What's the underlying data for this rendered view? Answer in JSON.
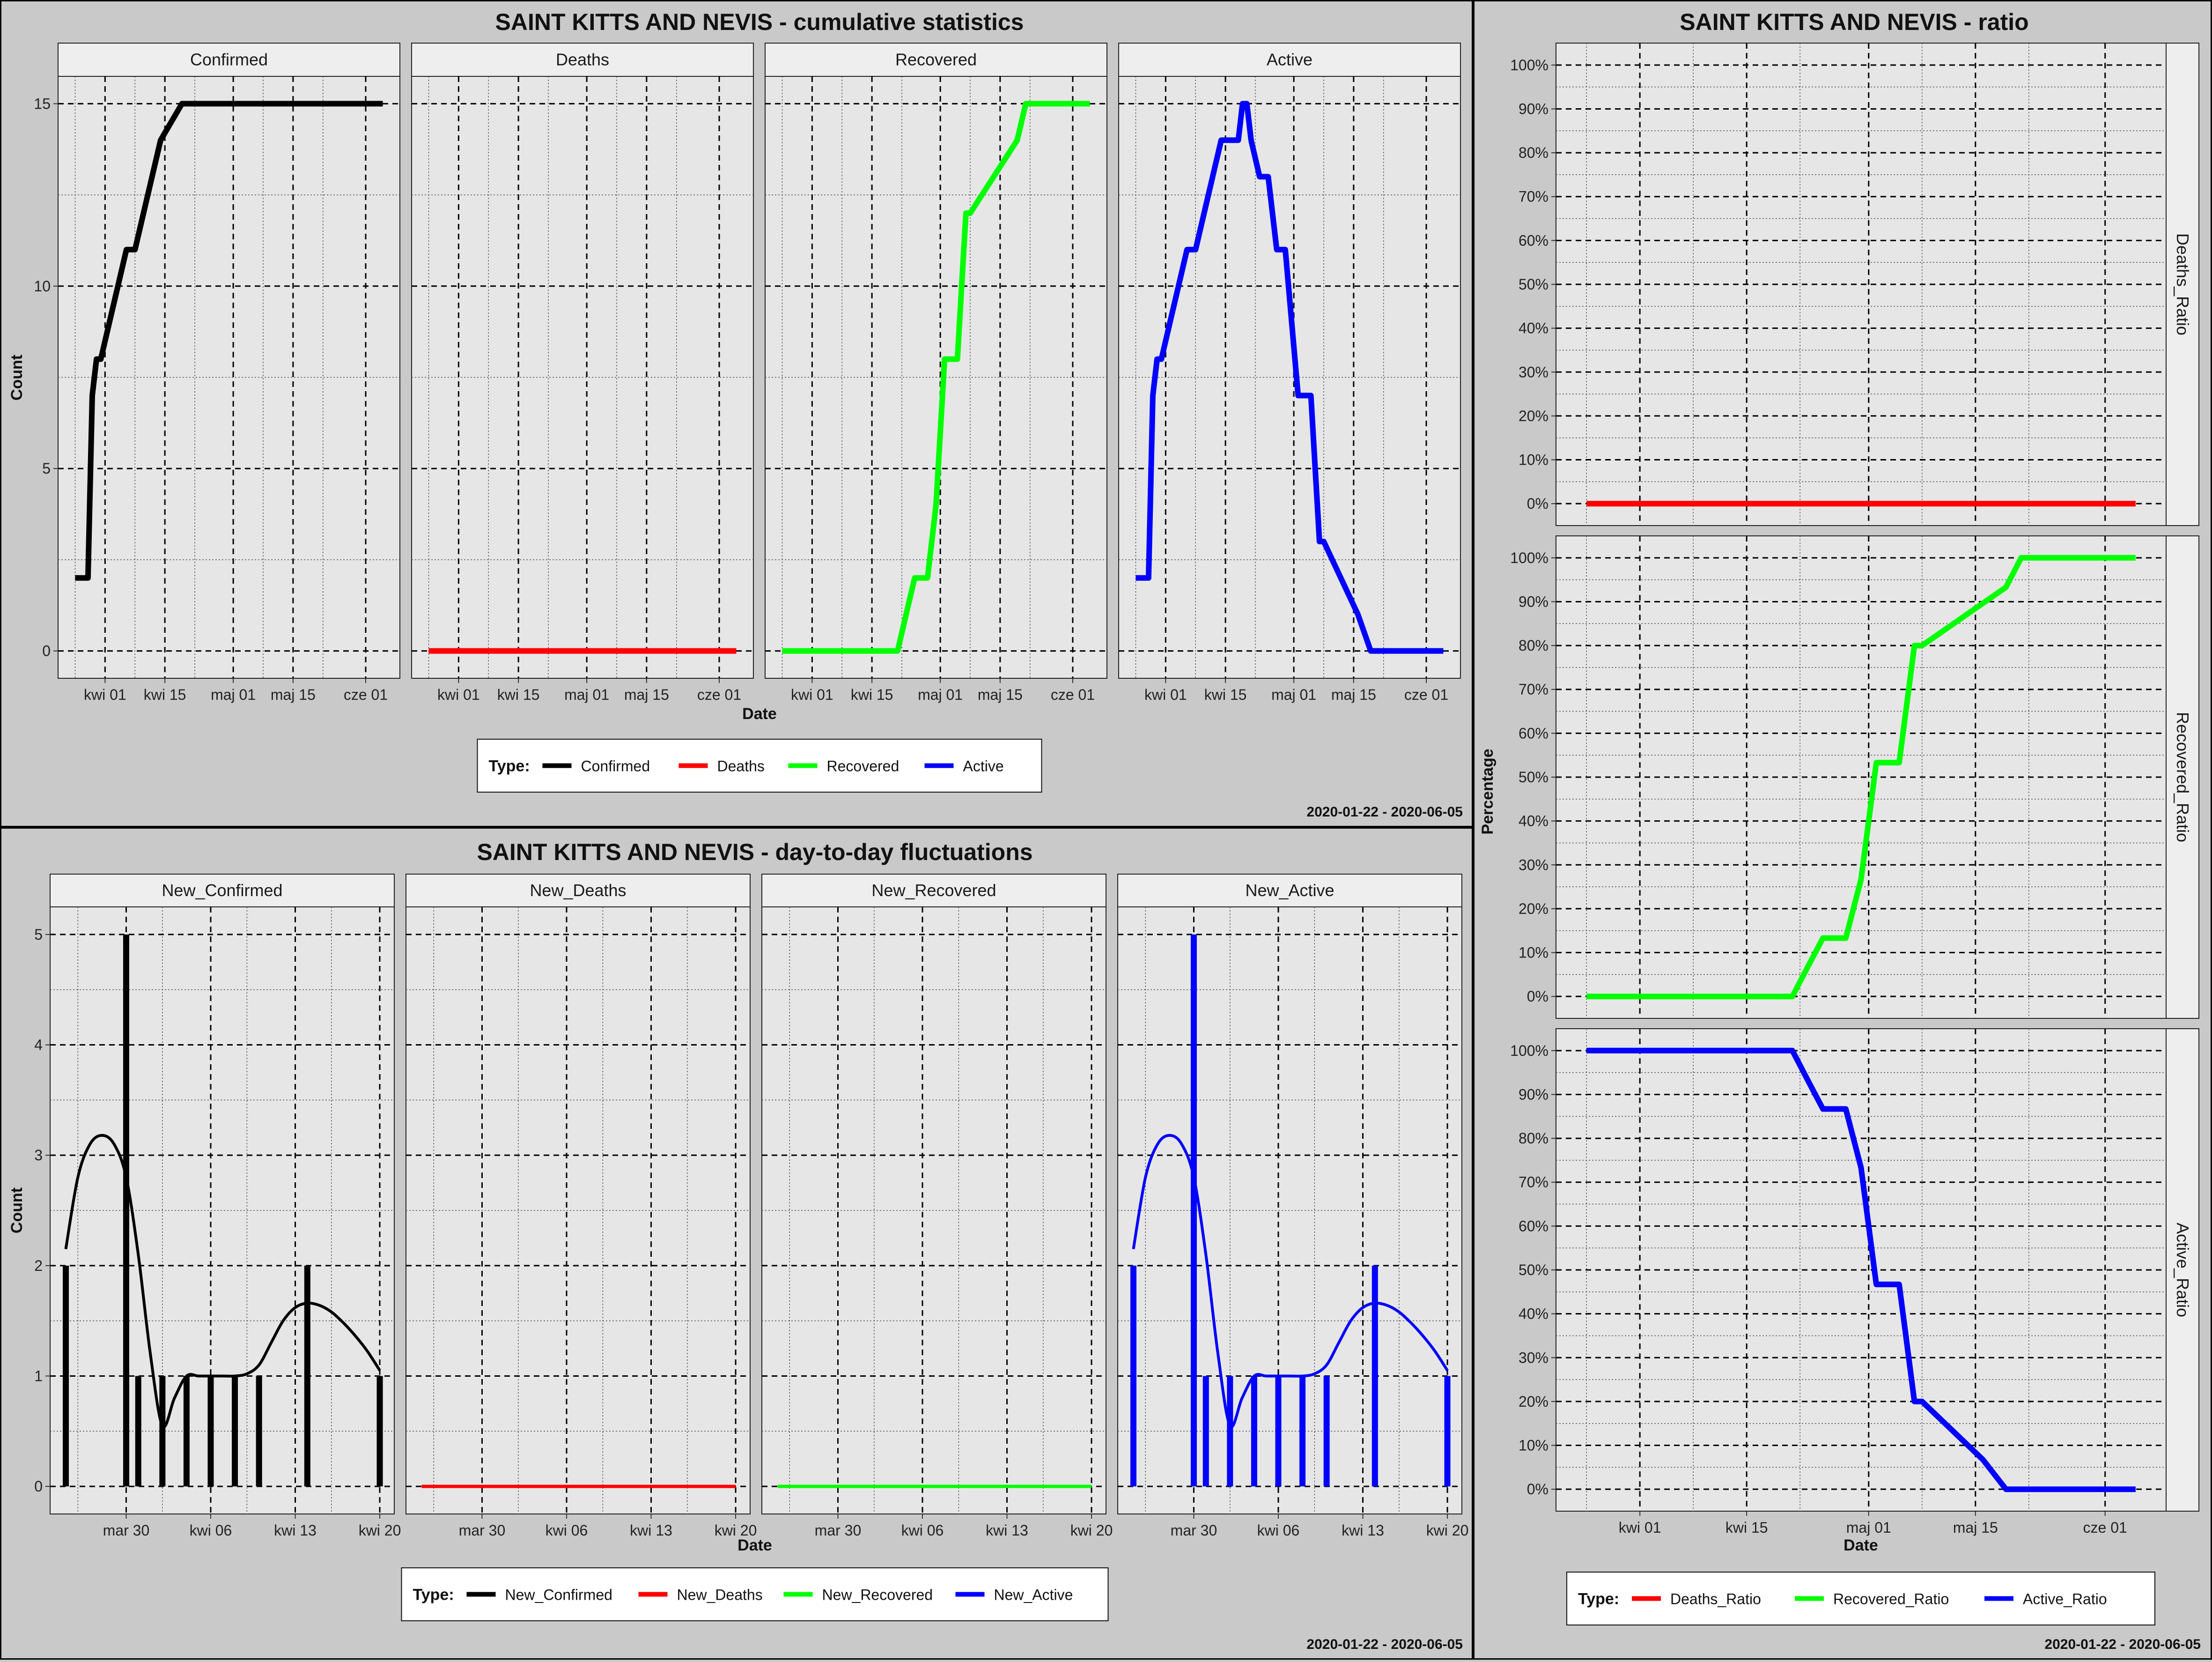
{
  "colors": {
    "background": "#c9c9c9",
    "panel_background": "#e6e6e6",
    "strip_background": "#eeeeee",
    "Confirmed": "#000000",
    "Deaths": "#ff0000",
    "Recovered": "#00ff00",
    "Active": "#0000ff"
  },
  "chart_data": [
    {
      "id": "cumulative",
      "type": "line",
      "title": "SAINT KITTS AND NEVIS - cumulative statistics",
      "xlabel": "Date",
      "ylabel": "Count",
      "date_range": "2020-01-22 - 2020-06-05",
      "legend": {
        "title": "Type:",
        "placement": "bottom",
        "entries": [
          "Confirmed",
          "Deaths",
          "Recovered",
          "Active"
        ]
      },
      "x_ticks": [
        "kwi 01",
        "kwi 15",
        "maj 01",
        "maj 15",
        "cze 01"
      ],
      "y_ticks": [
        "0",
        "5",
        "10",
        "15"
      ],
      "ylim": [
        -0.75,
        15.75
      ],
      "grid": true,
      "facets": [
        {
          "name": "Confirmed",
          "color_key": "Confirmed",
          "x": [
            "2020-03-25",
            "2020-03-28",
            "2020-03-29",
            "2020-03-30",
            "2020-03-31",
            "2020-04-02",
            "2020-04-04",
            "2020-04-06",
            "2020-04-08",
            "2020-04-10",
            "2020-04-14",
            "2020-04-19",
            "2020-06-05"
          ],
          "y": [
            2,
            2,
            7,
            8,
            8,
            9,
            10,
            11,
            11,
            12,
            14,
            15,
            15
          ]
        },
        {
          "name": "Deaths",
          "color_key": "Deaths",
          "x": [
            "2020-03-25",
            "2020-06-05"
          ],
          "y": [
            0,
            0
          ]
        },
        {
          "name": "Recovered",
          "color_key": "Recovered",
          "x": [
            "2020-03-25",
            "2020-04-21",
            "2020-04-23",
            "2020-04-25",
            "2020-04-28",
            "2020-04-30",
            "2020-05-02",
            "2020-05-05",
            "2020-05-07",
            "2020-05-08",
            "2020-05-19",
            "2020-05-21",
            "2020-06-05"
          ],
          "y": [
            0,
            0,
            1,
            2,
            2,
            4,
            8,
            8,
            12,
            12,
            14,
            15,
            15
          ]
        },
        {
          "name": "Active",
          "color_key": "Active",
          "x": [
            "2020-03-25",
            "2020-03-28",
            "2020-03-29",
            "2020-03-30",
            "2020-03-31",
            "2020-04-02",
            "2020-04-04",
            "2020-04-06",
            "2020-04-08",
            "2020-04-10",
            "2020-04-14",
            "2020-04-18",
            "2020-04-19",
            "2020-04-20",
            "2020-04-21",
            "2020-04-23",
            "2020-04-25",
            "2020-04-27",
            "2020-04-29",
            "2020-05-02",
            "2020-05-05",
            "2020-05-07",
            "2020-05-08",
            "2020-05-16",
            "2020-05-19",
            "2020-06-05"
          ],
          "y": [
            2,
            2,
            7,
            8,
            8,
            9,
            10,
            11,
            11,
            12,
            14,
            14,
            15,
            15,
            14,
            13,
            13,
            11,
            11,
            7,
            7,
            3,
            3,
            1,
            0,
            0
          ]
        }
      ]
    },
    {
      "id": "daily",
      "type": "bar",
      "title": "SAINT KITTS AND NEVIS - day-to-day fluctuations",
      "xlabel": "Date",
      "ylabel": "Count",
      "date_range": "2020-01-22 - 2020-06-05",
      "legend": {
        "title": "Type:",
        "placement": "bottom",
        "entries": [
          "New_Confirmed",
          "New_Deaths",
          "New_Recovered",
          "New_Active"
        ]
      },
      "x_ticks": [
        "mar 30",
        "kwi 06",
        "kwi 13",
        "kwi 20"
      ],
      "y_ticks": [
        "0",
        "1",
        "2",
        "3",
        "4",
        "5"
      ],
      "ylim": [
        -0.25,
        5.25
      ],
      "grid": true,
      "facets": [
        {
          "name": "New_Confirmed",
          "color_key": "Confirmed",
          "bars": {
            "x": [
              "2020-03-25",
              "2020-03-30",
              "2020-03-31",
              "2020-04-02",
              "2020-04-04",
              "2020-04-06",
              "2020-04-08",
              "2020-04-10",
              "2020-04-14",
              "2020-04-20"
            ],
            "y": [
              2,
              5,
              1,
              1,
              1,
              1,
              1,
              1,
              2,
              1
            ]
          },
          "smooth": {
            "x": [
              "2020-03-25",
              "2020-03-26",
              "2020-03-27",
              "2020-03-28",
              "2020-03-29",
              "2020-03-30",
              "2020-03-31",
              "2020-04-01",
              "2020-04-02",
              "2020-04-03",
              "2020-04-04",
              "2020-04-05",
              "2020-04-06",
              "2020-04-07",
              "2020-04-08",
              "2020-04-09",
              "2020-04-10",
              "2020-04-11",
              "2020-04-12",
              "2020-04-13",
              "2020-04-14",
              "2020-04-15",
              "2020-04-16",
              "2020-04-17",
              "2020-04-18",
              "2020-04-19",
              "2020-04-20"
            ],
            "y": [
              2.15,
              2.8,
              3.1,
              3.18,
              3.1,
              2.8,
              2.1,
              1.2,
              0.55,
              0.8,
              1.0,
              1.0,
              1.0,
              1.0,
              1.0,
              1.02,
              1.1,
              1.3,
              1.5,
              1.62,
              1.66,
              1.64,
              1.58,
              1.48,
              1.36,
              1.22,
              1.05
            ]
          }
        },
        {
          "name": "New_Deaths",
          "color_key": "Deaths",
          "bars": {
            "x": [
              "2020-03-25",
              "2020-04-20"
            ],
            "y": [
              0,
              0
            ]
          }
        },
        {
          "name": "New_Recovered",
          "color_key": "Recovered",
          "bars": {
            "x": [
              "2020-03-25",
              "2020-04-20"
            ],
            "y": [
              0,
              0
            ]
          }
        },
        {
          "name": "New_Active",
          "color_key": "Active",
          "bars": {
            "x": [
              "2020-03-25",
              "2020-03-30",
              "2020-03-31",
              "2020-04-02",
              "2020-04-04",
              "2020-04-06",
              "2020-04-08",
              "2020-04-10",
              "2020-04-14",
              "2020-04-20"
            ],
            "y": [
              2,
              5,
              1,
              1,
              1,
              1,
              1,
              1,
              2,
              1
            ]
          },
          "smooth": {
            "x": [
              "2020-03-25",
              "2020-03-26",
              "2020-03-27",
              "2020-03-28",
              "2020-03-29",
              "2020-03-30",
              "2020-03-31",
              "2020-04-01",
              "2020-04-02",
              "2020-04-03",
              "2020-04-04",
              "2020-04-05",
              "2020-04-06",
              "2020-04-07",
              "2020-04-08",
              "2020-04-09",
              "2020-04-10",
              "2020-04-11",
              "2020-04-12",
              "2020-04-13",
              "2020-04-14",
              "2020-04-15",
              "2020-04-16",
              "2020-04-17",
              "2020-04-18",
              "2020-04-19",
              "2020-04-20"
            ],
            "y": [
              2.15,
              2.8,
              3.1,
              3.18,
              3.1,
              2.8,
              2.1,
              1.2,
              0.55,
              0.8,
              1.0,
              1.0,
              1.0,
              1.0,
              1.0,
              1.02,
              1.1,
              1.3,
              1.5,
              1.62,
              1.66,
              1.64,
              1.58,
              1.48,
              1.36,
              1.22,
              1.05
            ]
          }
        }
      ]
    },
    {
      "id": "ratio",
      "type": "line",
      "title": "SAINT KITTS AND NEVIS - ratio",
      "xlabel": "Date",
      "ylabel": "Percentage",
      "date_range": "2020-01-22 - 2020-06-05",
      "legend": {
        "title": "Type:",
        "placement": "bottom",
        "entries": [
          "Deaths_Ratio",
          "Recovered_Ratio",
          "Active_Ratio"
        ]
      },
      "x_ticks": [
        "kwi 01",
        "kwi 15",
        "maj 01",
        "maj 15",
        "cze 01"
      ],
      "y_ticks": [
        "0%",
        "10%",
        "20%",
        "30%",
        "40%",
        "50%",
        "60%",
        "70%",
        "80%",
        "90%",
        "100%"
      ],
      "ylim": [
        -5,
        105
      ],
      "grid": true,
      "facets": [
        {
          "name": "Deaths_Ratio",
          "color_key": "Deaths",
          "x": [
            "2020-03-25",
            "2020-06-05"
          ],
          "y": [
            0,
            0
          ]
        },
        {
          "name": "Recovered_Ratio",
          "color_key": "Recovered",
          "x": [
            "2020-03-25",
            "2020-04-21",
            "2020-04-23",
            "2020-04-25",
            "2020-04-28",
            "2020-04-30",
            "2020-05-02",
            "2020-05-05",
            "2020-05-07",
            "2020-05-08",
            "2020-05-19",
            "2020-05-21",
            "2020-06-05"
          ],
          "y": [
            0,
            0,
            6.7,
            13.3,
            13.3,
            26.7,
            53.3,
            53.3,
            80,
            80,
            93.3,
            100,
            100
          ]
        },
        {
          "name": "Active_Ratio",
          "color_key": "Active",
          "x": [
            "2020-03-25",
            "2020-04-21",
            "2020-04-23",
            "2020-04-25",
            "2020-04-28",
            "2020-04-30",
            "2020-05-02",
            "2020-05-05",
            "2020-05-07",
            "2020-05-08",
            "2020-05-16",
            "2020-05-19",
            "2020-06-05"
          ],
          "y": [
            100,
            100,
            93.3,
            86.7,
            86.7,
            73.3,
            46.7,
            46.7,
            20,
            20,
            6.7,
            0,
            0
          ]
        }
      ]
    }
  ]
}
